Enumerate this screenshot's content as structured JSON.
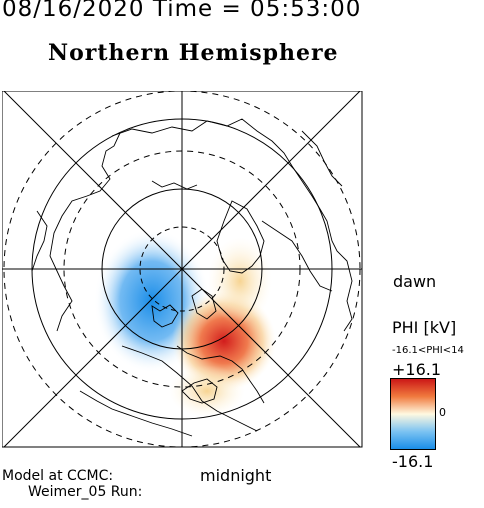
{
  "header": {
    "datetime": "08/16/2020 Time = 05:53:00",
    "hemisphere": "Northern Hemisphere"
  },
  "map": {
    "dawn_label": "dawn",
    "midnight_label": "midnight",
    "projection": "polar",
    "colors": {
      "positive": "#cc1717",
      "negative": "#1a8de8",
      "zero": "#ffffff"
    }
  },
  "colorbar": {
    "title": "PHI [kV]",
    "range_label": "-16.1<PHI<14",
    "max_label": "+16.1",
    "zero_label": "0",
    "min_label": "-16.1"
  },
  "footer": {
    "model": "Model at CCMC:",
    "run": "Weimer_05 Run:"
  }
}
